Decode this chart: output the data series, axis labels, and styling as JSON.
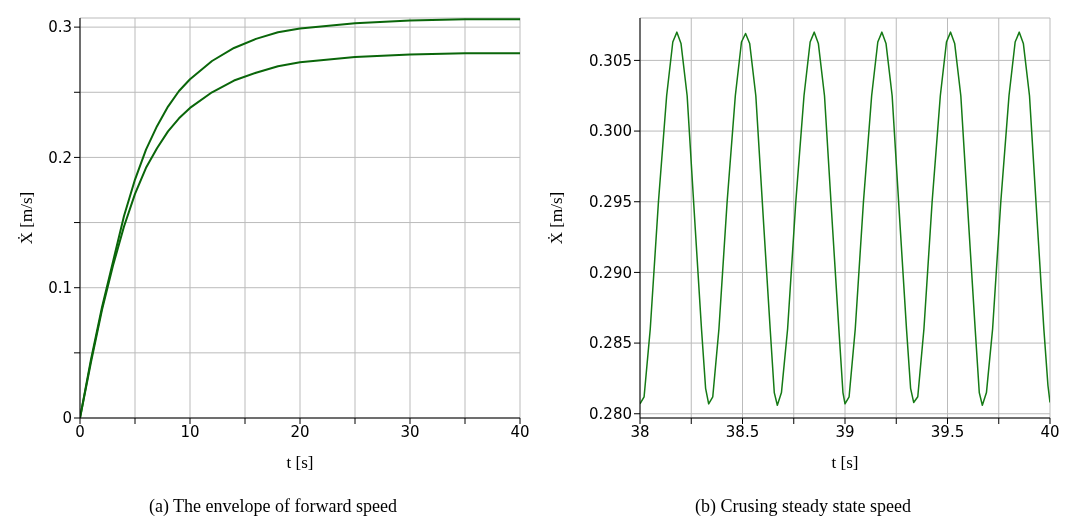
{
  "chart_data": [
    {
      "type": "line",
      "xlabel": "t [s]",
      "ylabel": "Ẋ [m/s]",
      "annotations": [
        "(a) The envelope of forward speed"
      ],
      "grid": true,
      "xlim": [
        0,
        40
      ],
      "ylim": [
        0,
        0.307
      ],
      "xticks": [
        0,
        {
          "value": 5,
          "label": null
        },
        10,
        {
          "value": 15,
          "label": null
        },
        20,
        {
          "value": 25,
          "label": null
        },
        30,
        {
          "value": 35,
          "label": null
        },
        40
      ],
      "yticks": [
        0,
        {
          "value": 0.05,
          "label": null
        },
        0.1,
        {
          "value": 0.15,
          "label": null
        },
        0.2,
        {
          "value": 0.25,
          "label": null
        },
        0.3
      ],
      "series": [
        {
          "color": "#0a660a",
          "x": [
            0,
            1,
            2,
            3,
            4,
            5,
            6,
            7,
            8,
            9,
            10,
            12,
            14,
            16,
            18,
            20,
            25,
            30,
            35,
            40
          ],
          "values": [
            0,
            0.045,
            0.085,
            0.12,
            0.155,
            0.183,
            0.206,
            0.224,
            0.239,
            0.251,
            0.26,
            0.274,
            0.284,
            0.291,
            0.296,
            0.299,
            0.303,
            0.305,
            0.306,
            0.306
          ]
        },
        {
          "color": "#0a660a",
          "x": [
            0,
            1,
            2,
            3,
            4,
            5,
            6,
            7,
            8,
            9,
            10,
            12,
            14,
            16,
            18,
            20,
            25,
            30,
            35,
            40
          ],
          "values": [
            0,
            0.043,
            0.083,
            0.117,
            0.147,
            0.172,
            0.192,
            0.207,
            0.22,
            0.23,
            0.238,
            0.25,
            0.259,
            0.265,
            0.27,
            0.273,
            0.277,
            0.279,
            0.28,
            0.28
          ]
        }
      ]
    },
    {
      "type": "line",
      "xlabel": "t [s]",
      "ylabel": "Ẋ [m/s]",
      "annotations": [
        "(b) Crusing steady state speed"
      ],
      "grid": true,
      "xlim": [
        38,
        40
      ],
      "ylim": [
        0.2797,
        0.308
      ],
      "xticks": [
        38,
        {
          "value": 38.25,
          "label": null
        },
        38.5,
        {
          "value": 38.75,
          "label": null
        },
        39,
        {
          "value": 39.25,
          "label": null
        },
        39.5,
        {
          "value": 39.75,
          "label": null
        },
        40
      ],
      "yticks": [
        {
          "value": 0.28,
          "label": "0.280"
        },
        {
          "value": 0.285,
          "label": "0.285"
        },
        {
          "value": 0.29,
          "label": "0.290"
        },
        {
          "value": 0.295,
          "label": "0.295"
        },
        {
          "value": 0.3,
          "label": "0.300"
        },
        {
          "value": 0.305,
          "label": "0.305"
        }
      ],
      "series": [
        {
          "color": "#157a15",
          "x": [
            38.0,
            38.02,
            38.05,
            38.09,
            38.13,
            38.16,
            38.18,
            38.2,
            38.23,
            38.27,
            38.3,
            38.32,
            38.335,
            38.355,
            38.385,
            38.425,
            38.465,
            38.495,
            38.515,
            38.535,
            38.565,
            38.605,
            38.635,
            38.655,
            38.67,
            38.69,
            38.72,
            38.76,
            38.8,
            38.83,
            38.85,
            38.87,
            38.9,
            38.94,
            38.97,
            38.99,
            39.0,
            39.02,
            39.05,
            39.09,
            39.13,
            39.16,
            39.18,
            39.2,
            39.23,
            39.27,
            39.3,
            39.32,
            39.335,
            39.355,
            39.385,
            39.425,
            39.465,
            39.495,
            39.515,
            39.535,
            39.565,
            39.605,
            39.635,
            39.655,
            39.67,
            39.69,
            39.72,
            39.76,
            39.8,
            39.83,
            39.85,
            39.87,
            39.9,
            39.94,
            39.97,
            39.99,
            40.0
          ],
          "values": [
            0.2807,
            0.2812,
            0.286,
            0.295,
            0.3025,
            0.3063,
            0.307,
            0.3062,
            0.3025,
            0.293,
            0.286,
            0.2818,
            0.2807,
            0.2812,
            0.286,
            0.295,
            0.3025,
            0.3063,
            0.3069,
            0.3062,
            0.3025,
            0.293,
            0.286,
            0.2815,
            0.2806,
            0.2815,
            0.286,
            0.295,
            0.3025,
            0.3063,
            0.307,
            0.3062,
            0.3025,
            0.293,
            0.286,
            0.2815,
            0.2807,
            0.2812,
            0.286,
            0.295,
            0.3025,
            0.3063,
            0.307,
            0.3062,
            0.3025,
            0.293,
            0.286,
            0.2818,
            0.2808,
            0.2812,
            0.286,
            0.295,
            0.3025,
            0.3063,
            0.307,
            0.3062,
            0.3025,
            0.293,
            0.286,
            0.2815,
            0.2806,
            0.2815,
            0.286,
            0.295,
            0.3025,
            0.3063,
            0.307,
            0.3062,
            0.3025,
            0.293,
            0.286,
            0.282,
            0.2808
          ]
        }
      ]
    }
  ]
}
